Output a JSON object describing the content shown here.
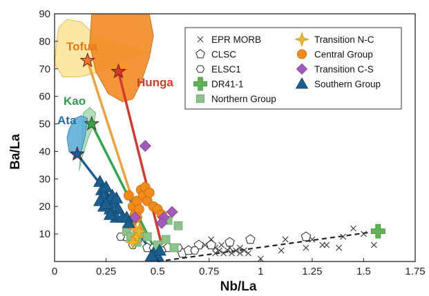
{
  "chart_data": {
    "type": "scatter",
    "xlabel": "Nb/La",
    "ylabel": "Ba/La",
    "xlim": [
      0,
      1.75
    ],
    "ylim": [
      0,
      90
    ],
    "xticks": [
      "0",
      "0.25",
      "0.5",
      "0.75",
      "1",
      "1.25",
      "1.5",
      "1.75"
    ],
    "yticks": [
      "10",
      "20",
      "30",
      "40",
      "50",
      "60",
      "70",
      "80",
      "90"
    ],
    "grid": false,
    "legend_position": "top-right",
    "field_labels": [
      {
        "name": "Tofua",
        "color": "#e2771c"
      },
      {
        "name": "Hunga",
        "color": "#d53b26"
      },
      {
        "name": "Kao",
        "color": "#27a046"
      },
      {
        "name": "Ata",
        "color": "#1f6fa8"
      }
    ],
    "series": [
      {
        "name": "EPR MORB",
        "marker": "x",
        "color": "#444444",
        "points": [
          [
            0.73,
            6
          ],
          [
            0.76,
            8
          ],
          [
            0.78,
            3
          ],
          [
            0.8,
            4
          ],
          [
            0.82,
            3
          ],
          [
            0.84,
            4
          ],
          [
            0.86,
            3
          ],
          [
            0.88,
            4
          ],
          [
            0.9,
            3
          ],
          [
            0.92,
            4
          ],
          [
            0.94,
            3
          ],
          [
            0.78,
            5
          ],
          [
            0.81,
            6
          ],
          [
            0.85,
            5
          ],
          [
            0.9,
            5
          ],
          [
            1.0,
            1
          ],
          [
            1.1,
            4
          ],
          [
            1.12,
            8
          ],
          [
            1.22,
            5
          ],
          [
            1.25,
            8
          ],
          [
            1.3,
            6
          ],
          [
            1.32,
            6
          ],
          [
            1.38,
            5
          ],
          [
            1.4,
            9
          ],
          [
            1.45,
            12
          ],
          [
            1.5,
            10
          ],
          [
            1.55,
            6
          ]
        ]
      },
      {
        "name": "CLSC",
        "marker": "pentagon",
        "color": "#222222",
        "points": [
          [
            0.35,
            9
          ],
          [
            0.4,
            7
          ],
          [
            0.45,
            5
          ],
          [
            0.5,
            4
          ],
          [
            0.55,
            5
          ],
          [
            0.62,
            3
          ],
          [
            0.65,
            4
          ],
          [
            0.7,
            6
          ],
          [
            0.76,
            6
          ],
          [
            0.85,
            7
          ],
          [
            0.95,
            8
          ],
          [
            1.22,
            9
          ]
        ]
      },
      {
        "name": "ELSC1",
        "marker": "hexagon",
        "color": "#222222",
        "points": [
          [
            0.32,
            9
          ],
          [
            0.38,
            6
          ],
          [
            0.48,
            5
          ],
          [
            0.52,
            4
          ],
          [
            0.6,
            5
          ],
          [
            0.68,
            4
          ]
        ]
      },
      {
        "name": "DR41-1",
        "marker": "cross",
        "color": "#5fb354",
        "points": [
          [
            1.57,
            11
          ]
        ]
      },
      {
        "name": "Northern Group",
        "marker": "square",
        "color": "#8cc38a",
        "points": [
          [
            0.35,
            11
          ],
          [
            0.37,
            9
          ],
          [
            0.4,
            7
          ],
          [
            0.42,
            10
          ],
          [
            0.45,
            9
          ],
          [
            0.5,
            6
          ],
          [
            0.54,
            8
          ],
          [
            0.58,
            5
          ],
          [
            0.6,
            13
          ],
          [
            0.55,
            15
          ]
        ]
      },
      {
        "name": "Transition N-C",
        "marker": "star4",
        "color": "#f2b62a",
        "points": [
          [
            0.39,
            12
          ],
          [
            0.4,
            9
          ],
          [
            0.38,
            7
          ],
          [
            0.41,
            11
          ]
        ]
      },
      {
        "name": "Central Group",
        "marker": "circle",
        "color": "#f18b1c",
        "points": [
          [
            0.36,
            24
          ],
          [
            0.38,
            20
          ],
          [
            0.39,
            17
          ],
          [
            0.4,
            22
          ],
          [
            0.41,
            19
          ],
          [
            0.42,
            26
          ],
          [
            0.43,
            24
          ],
          [
            0.44,
            27
          ],
          [
            0.45,
            22
          ],
          [
            0.46,
            25
          ],
          [
            0.48,
            20
          ],
          [
            0.5,
            19
          ],
          [
            0.52,
            17
          ],
          [
            0.38,
            15
          ],
          [
            0.4,
            16
          ]
        ]
      },
      {
        "name": "Transition C-S",
        "marker": "diamond",
        "color": "#a35bb8",
        "points": [
          [
            0.44,
            42
          ],
          [
            0.39,
            16
          ],
          [
            0.53,
            16
          ],
          [
            0.57,
            18
          ],
          [
            0.52,
            14
          ]
        ]
      },
      {
        "name": "Southern Group",
        "marker": "triangle",
        "color": "#1a5f8f",
        "points": [
          [
            0.22,
            29
          ],
          [
            0.23,
            26
          ],
          [
            0.24,
            24
          ],
          [
            0.25,
            27
          ],
          [
            0.22,
            22
          ],
          [
            0.24,
            20
          ],
          [
            0.26,
            22
          ],
          [
            0.27,
            19
          ],
          [
            0.28,
            24
          ],
          [
            0.29,
            21
          ],
          [
            0.3,
            23
          ],
          [
            0.31,
            19
          ],
          [
            0.3,
            16
          ],
          [
            0.33,
            16
          ],
          [
            0.35,
            16
          ],
          [
            0.36,
            14
          ],
          [
            0.27,
            17
          ],
          [
            0.25,
            21
          ],
          [
            0.48,
            3
          ],
          [
            0.5,
            2
          ],
          [
            0.51,
            4
          ],
          [
            0.47,
            2
          ]
        ]
      }
    ],
    "trend_lines": [
      {
        "name": "Tofua",
        "color": "#f2a03a",
        "from": [
          0.16,
          73
        ],
        "to": [
          0.44,
          8
        ]
      },
      {
        "name": "Hunga",
        "color": "#d8382c",
        "from": [
          0.31,
          69
        ],
        "to": [
          0.52,
          6
        ]
      },
      {
        "name": "Kao",
        "color": "#2ea84b",
        "from": [
          0.18,
          50
        ],
        "to": [
          0.49,
          4
        ]
      },
      {
        "name": "Ata",
        "color": "#1b5d95",
        "from": [
          0.11,
          39
        ],
        "to": [
          0.48,
          3
        ]
      },
      {
        "name": "",
        "color": "#222222",
        "dashed": true,
        "from": [
          0.5,
          0
        ],
        "to": [
          1.57,
          11
        ]
      }
    ],
    "end_member_stars": [
      {
        "x": 0.16,
        "y": 73,
        "color": "#e8772a"
      },
      {
        "x": 0.31,
        "y": 69,
        "color": "#d8382c"
      },
      {
        "x": 0.18,
        "y": 50,
        "color": "#2ea84b"
      },
      {
        "x": 0.11,
        "y": 39,
        "color": "#1b5d95"
      }
    ]
  }
}
